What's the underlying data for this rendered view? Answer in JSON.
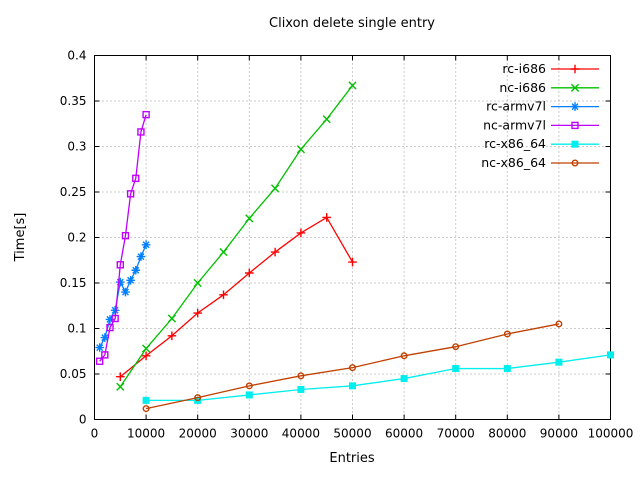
{
  "window": {
    "background": "#ffffff"
  },
  "chart_data": {
    "type": "line",
    "title": "Clixon delete single entry",
    "xlabel": "Entries",
    "ylabel": "Time[s]",
    "xlim": [
      0,
      100000
    ],
    "ylim": [
      0,
      0.4
    ],
    "grid": true,
    "grid_style": "dotted-gray",
    "legend_position": "top-right-inside",
    "x_ticks": [
      0,
      10000,
      20000,
      30000,
      40000,
      50000,
      60000,
      70000,
      80000,
      90000,
      100000
    ],
    "x_tick_labels": [
      "0",
      "10000",
      "20000",
      "30000",
      "40000",
      "50000",
      "60000",
      "70000",
      "80000",
      "90000",
      "100000"
    ],
    "y_ticks": [
      0,
      0.05,
      0.1,
      0.15,
      0.2,
      0.25,
      0.3,
      0.35,
      0.4
    ],
    "y_tick_labels": [
      "0",
      "0.05",
      "0.1",
      "0.15",
      "0.2",
      "0.25",
      "0.3",
      "0.35",
      "0.4"
    ],
    "series": [
      {
        "name": "rc-i686",
        "color": "#ff0000",
        "marker": "plus",
        "x": [
          5000,
          10000,
          15000,
          20000,
          25000,
          30000,
          35000,
          40000,
          45000,
          50000
        ],
        "y": [
          0.047,
          0.07,
          0.092,
          0.117,
          0.137,
          0.161,
          0.184,
          0.205,
          0.222,
          0.173
        ]
      },
      {
        "name": "nc-i686",
        "color": "#00c000",
        "marker": "times",
        "x": [
          5000,
          10000,
          15000,
          20000,
          25000,
          30000,
          35000,
          40000,
          45000,
          50000
        ],
        "y": [
          0.036,
          0.078,
          0.111,
          0.15,
          0.184,
          0.221,
          0.254,
          0.297,
          0.33,
          0.367
        ]
      },
      {
        "name": "rc-armv7l",
        "color": "#0080ff",
        "marker": "asterisk",
        "x": [
          1000,
          2000,
          3000,
          4000,
          5000,
          6000,
          7000,
          8000,
          9000,
          10000
        ],
        "y": [
          0.079,
          0.09,
          0.11,
          0.12,
          0.151,
          0.14,
          0.153,
          0.164,
          0.179,
          0.192
        ]
      },
      {
        "name": "nc-armv7l",
        "color": "#c000ff",
        "marker": "square-open",
        "x": [
          1000,
          2000,
          3000,
          4000,
          5000,
          6000,
          7000,
          8000,
          9000,
          10000
        ],
        "y": [
          0.064,
          0.071,
          0.101,
          0.111,
          0.17,
          0.202,
          0.248,
          0.265,
          0.316,
          0.335
        ]
      },
      {
        "name": "rc-x86_64",
        "color": "#00eeee",
        "marker": "square-filled",
        "x": [
          10000,
          20000,
          30000,
          40000,
          50000,
          60000,
          70000,
          80000,
          90000,
          100000
        ],
        "y": [
          0.021,
          0.021,
          0.027,
          0.033,
          0.037,
          0.045,
          0.056,
          0.056,
          0.063,
          0.071
        ]
      },
      {
        "name": "nc-x86_64",
        "color": "#c04000",
        "marker": "circle-open",
        "x": [
          10000,
          20000,
          30000,
          40000,
          50000,
          60000,
          70000,
          80000,
          90000
        ],
        "y": [
          0.012,
          0.024,
          0.037,
          0.048,
          0.057,
          0.07,
          0.08,
          0.094,
          0.105
        ]
      }
    ]
  }
}
